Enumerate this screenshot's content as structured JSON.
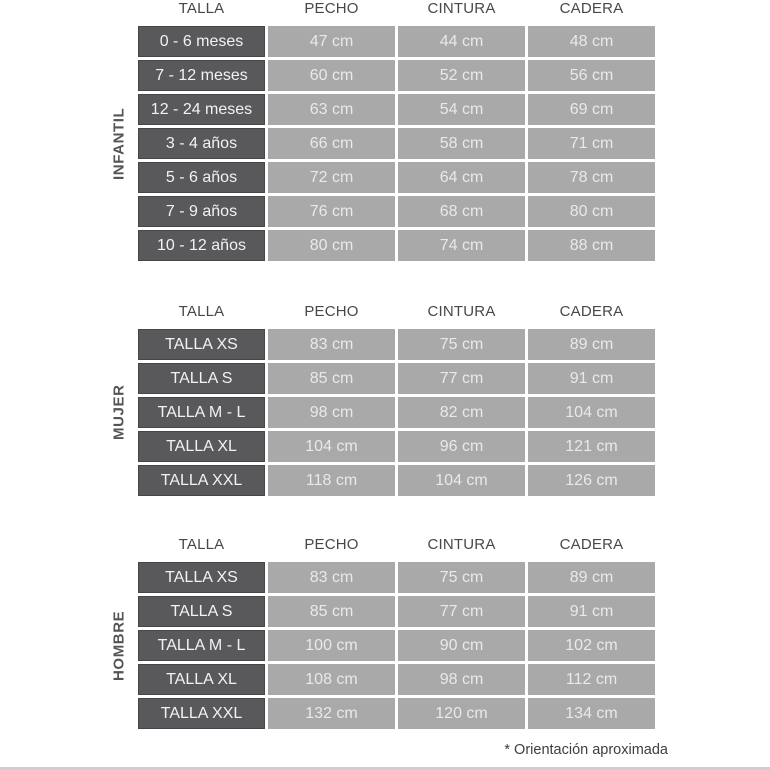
{
  "colors": {
    "dark_cell": "#59595b",
    "dark_cell_border": "#464648",
    "dark_cell_text": "#f2f2f2",
    "light_cell": "#a9a9a9",
    "light_cell_text": "#e9e9e9",
    "header_text": "#474747",
    "section_label": "#545456",
    "footnote_text": "#3e3e3e",
    "bottom_line": "#cfcfcf"
  },
  "chart_data": [
    {
      "type": "table",
      "title": "INFANTIL",
      "columns": [
        "TALLA",
        "PECHO",
        "CINTURA",
        "CADERA"
      ],
      "rows": [
        [
          "0 - 6 meses",
          "47 cm",
          "44 cm",
          "48 cm"
        ],
        [
          "7 - 12 meses",
          "60 cm",
          "52 cm",
          "56 cm"
        ],
        [
          "12 - 24 meses",
          "63 cm",
          "54 cm",
          "69 cm"
        ],
        [
          "3 - 4 años",
          "66 cm",
          "58 cm",
          "71 cm"
        ],
        [
          "5 - 6 años",
          "72 cm",
          "64 cm",
          "78 cm"
        ],
        [
          "7 - 9 años",
          "76 cm",
          "68 cm",
          "80 cm"
        ],
        [
          "10 - 12 años",
          "80 cm",
          "74 cm",
          "88 cm"
        ]
      ]
    },
    {
      "type": "table",
      "title": "MUJER",
      "columns": [
        "TALLA",
        "PECHO",
        "CINTURA",
        "CADERA"
      ],
      "rows": [
        [
          "TALLA XS",
          "83 cm",
          "75 cm",
          "89 cm"
        ],
        [
          "TALLA S",
          "85 cm",
          "77 cm",
          "91 cm"
        ],
        [
          "TALLA M - L",
          "98 cm",
          "82 cm",
          "104 cm"
        ],
        [
          "TALLA XL",
          "104 cm",
          "96 cm",
          "121 cm"
        ],
        [
          "TALLA XXL",
          "118 cm",
          "104 cm",
          "126 cm"
        ]
      ]
    },
    {
      "type": "table",
      "title": "HOMBRE",
      "columns": [
        "TALLA",
        "PECHO",
        "CINTURA",
        "CADERA"
      ],
      "rows": [
        [
          "TALLA XS",
          "83 cm",
          "75 cm",
          "89 cm"
        ],
        [
          "TALLA S",
          "85 cm",
          "77 cm",
          "91 cm"
        ],
        [
          "TALLA M - L",
          "100 cm",
          "90 cm",
          "102 cm"
        ],
        [
          "TALLA XL",
          "108 cm",
          "98 cm",
          "112 cm"
        ],
        [
          "TALLA XXL",
          "132 cm",
          "120 cm",
          "134 cm"
        ]
      ]
    }
  ],
  "footnote": "* Orientación aproximada"
}
